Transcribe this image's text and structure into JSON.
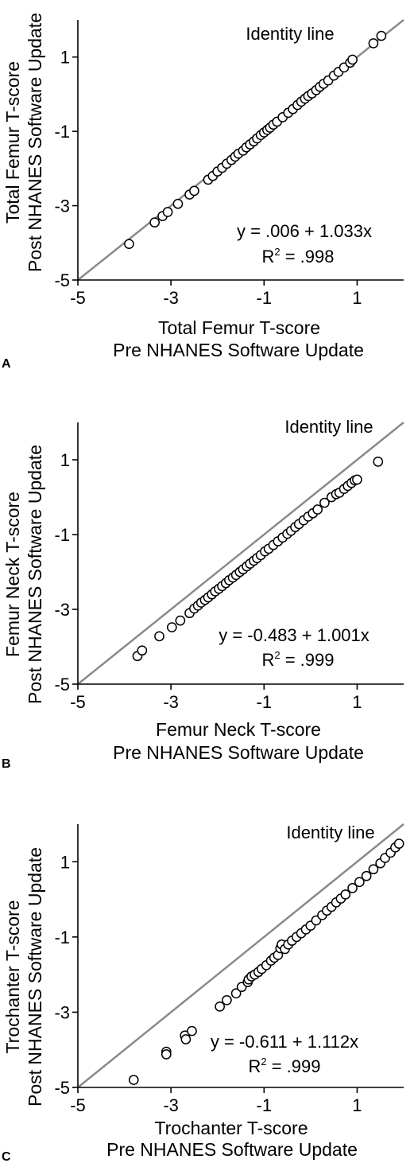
{
  "chart_data": [
    {
      "type": "scatter",
      "panel_label": "A",
      "xlabel_line1": "Total Femur T-score",
      "xlabel_line2": "Pre NHANES Software Update",
      "ylabel_line1": "Total Femur T-score",
      "ylabel_line2": "Post NHANES Software Update",
      "identity_label": "Identity line",
      "equation": "y = .006 + 1.033x",
      "r2_prefix": "R",
      "r2_sup": "2",
      "r2_value": " = .998",
      "xlim": [
        -5,
        2
      ],
      "ylim": [
        -5,
        2
      ],
      "xticks": [
        -5,
        -3,
        -1,
        1
      ],
      "yticks": [
        -5,
        -3,
        -1,
        1
      ],
      "identity_line": true,
      "points": [
        [
          -3.9,
          -4.03
        ],
        [
          -3.35,
          -3.45
        ],
        [
          -3.18,
          -3.28
        ],
        [
          -3.07,
          -3.17
        ],
        [
          -2.85,
          -2.95
        ],
        [
          -2.6,
          -2.7
        ],
        [
          -2.5,
          -2.6
        ],
        [
          -2.2,
          -2.3
        ],
        [
          -2.1,
          -2.2
        ],
        [
          -2.0,
          -2.08
        ],
        [
          -1.9,
          -1.98
        ],
        [
          -1.8,
          -1.87
        ],
        [
          -1.7,
          -1.77
        ],
        [
          -1.62,
          -1.68
        ],
        [
          -1.55,
          -1.6
        ],
        [
          -1.45,
          -1.52
        ],
        [
          -1.38,
          -1.43
        ],
        [
          -1.3,
          -1.35
        ],
        [
          -1.22,
          -1.27
        ],
        [
          -1.15,
          -1.19
        ],
        [
          -1.07,
          -1.1
        ],
        [
          -1.0,
          -1.03
        ],
        [
          -0.93,
          -0.96
        ],
        [
          -0.87,
          -0.9
        ],
        [
          -0.8,
          -0.82
        ],
        [
          -0.72,
          -0.74
        ],
        [
          -0.6,
          -0.62
        ],
        [
          -0.48,
          -0.5
        ],
        [
          -0.38,
          -0.4
        ],
        [
          -0.28,
          -0.29
        ],
        [
          -0.2,
          -0.2
        ],
        [
          -0.12,
          -0.12
        ],
        [
          -0.05,
          -0.05
        ],
        [
          0.03,
          0.02
        ],
        [
          0.12,
          0.11
        ],
        [
          0.2,
          0.2
        ],
        [
          0.28,
          0.28
        ],
        [
          0.38,
          0.37
        ],
        [
          0.5,
          0.5
        ],
        [
          0.6,
          0.6
        ],
        [
          0.72,
          0.72
        ],
        [
          0.85,
          0.85
        ],
        [
          0.9,
          0.93
        ],
        [
          1.35,
          1.37
        ],
        [
          1.52,
          1.57
        ]
      ]
    },
    {
      "type": "scatter",
      "panel_label": "B",
      "xlabel_line1": "Femur Neck T-score",
      "xlabel_line2": "Pre NHANES Software Update",
      "ylabel_line1": "Femur Neck T-score",
      "ylabel_line2": "Post NHANES Software Update",
      "identity_label": "Identity line",
      "equation": "y = -0.483 + 1.001x",
      "r2_prefix": "R",
      "r2_sup": "2",
      "r2_value": " = .999",
      "xlim": [
        -5,
        2
      ],
      "ylim": [
        -5,
        2
      ],
      "xticks": [
        -5,
        -3,
        -1,
        1
      ],
      "yticks": [
        -5,
        -3,
        -1,
        1
      ],
      "identity_line": true,
      "points": [
        [
          -3.72,
          -4.25
        ],
        [
          -3.62,
          -4.1
        ],
        [
          -3.25,
          -3.72
        ],
        [
          -2.98,
          -3.48
        ],
        [
          -2.8,
          -3.3
        ],
        [
          -2.6,
          -3.1
        ],
        [
          -2.5,
          -2.98
        ],
        [
          -2.42,
          -2.9
        ],
        [
          -2.35,
          -2.82
        ],
        [
          -2.27,
          -2.75
        ],
        [
          -2.2,
          -2.68
        ],
        [
          -2.12,
          -2.6
        ],
        [
          -2.05,
          -2.52
        ],
        [
          -1.97,
          -2.45
        ],
        [
          -1.9,
          -2.38
        ],
        [
          -1.82,
          -2.3
        ],
        [
          -1.75,
          -2.22
        ],
        [
          -1.67,
          -2.15
        ],
        [
          -1.6,
          -2.08
        ],
        [
          -1.52,
          -2.0
        ],
        [
          -1.45,
          -1.93
        ],
        [
          -1.37,
          -1.85
        ],
        [
          -1.3,
          -1.78
        ],
        [
          -1.22,
          -1.7
        ],
        [
          -1.15,
          -1.63
        ],
        [
          -1.07,
          -1.55
        ],
        [
          -0.98,
          -1.45
        ],
        [
          -0.9,
          -1.38
        ],
        [
          -0.8,
          -1.28
        ],
        [
          -0.7,
          -1.18
        ],
        [
          -0.6,
          -1.08
        ],
        [
          -0.5,
          -0.98
        ],
        [
          -0.42,
          -0.9
        ],
        [
          -0.33,
          -0.8
        ],
        [
          -0.25,
          -0.72
        ],
        [
          -0.15,
          -0.62
        ],
        [
          -0.05,
          -0.52
        ],
        [
          0.05,
          -0.43
        ],
        [
          0.15,
          -0.33
        ],
        [
          0.3,
          -0.15
        ],
        [
          0.45,
          0.0
        ],
        [
          0.55,
          0.08
        ],
        [
          0.62,
          0.12
        ],
        [
          0.72,
          0.22
        ],
        [
          0.8,
          0.3
        ],
        [
          0.88,
          0.38
        ],
        [
          0.95,
          0.45
        ],
        [
          1.0,
          0.47
        ],
        [
          1.45,
          0.95
        ]
      ]
    },
    {
      "type": "scatter",
      "panel_label": "C",
      "xlabel_line1": "Trochanter T-score",
      "xlabel_line2": "Pre NHANES Software Update",
      "ylabel_line1": "Trochanter T-score",
      "ylabel_line2": "Post NHANES Software Update",
      "identity_label": "Identity line",
      "equation": "y = -0.611 + 1.112x",
      "r2_prefix": "R",
      "r2_sup": "2",
      "r2_value": " = .999",
      "xlim": [
        -5,
        2
      ],
      "ylim": [
        -5,
        2
      ],
      "xticks": [
        -5,
        -3,
        -1,
        1
      ],
      "yticks": [
        -5,
        -3,
        -1,
        1
      ],
      "identity_line": true,
      "points": [
        [
          -3.8,
          -4.8
        ],
        [
          -3.1,
          -4.05
        ],
        [
          -3.1,
          -4.12
        ],
        [
          -2.7,
          -3.62
        ],
        [
          -2.68,
          -3.72
        ],
        [
          -2.55,
          -3.5
        ],
        [
          -1.95,
          -2.85
        ],
        [
          -1.8,
          -2.68
        ],
        [
          -1.6,
          -2.5
        ],
        [
          -1.48,
          -2.33
        ],
        [
          -1.35,
          -2.2
        ],
        [
          -1.33,
          -2.13
        ],
        [
          -1.27,
          -2.05
        ],
        [
          -1.2,
          -2.0
        ],
        [
          -1.12,
          -1.93
        ],
        [
          -1.05,
          -1.85
        ],
        [
          -0.95,
          -1.75
        ],
        [
          -0.85,
          -1.63
        ],
        [
          -0.78,
          -1.55
        ],
        [
          -0.7,
          -1.48
        ],
        [
          -0.65,
          -1.3
        ],
        [
          -0.62,
          -1.2
        ],
        [
          -0.55,
          -1.32
        ],
        [
          -0.48,
          -1.2
        ],
        [
          -0.4,
          -1.1
        ],
        [
          -0.3,
          -1.0
        ],
        [
          -0.2,
          -0.9
        ],
        [
          -0.1,
          -0.8
        ],
        [
          0.0,
          -0.7
        ],
        [
          0.12,
          -0.56
        ],
        [
          0.25,
          -0.42
        ],
        [
          0.35,
          -0.3
        ],
        [
          0.45,
          -0.2
        ],
        [
          0.55,
          -0.08
        ],
        [
          0.65,
          0.02
        ],
        [
          0.75,
          0.13
        ],
        [
          0.9,
          0.3
        ],
        [
          1.05,
          0.46
        ],
        [
          1.2,
          0.62
        ],
        [
          1.35,
          0.8
        ],
        [
          1.5,
          0.96
        ],
        [
          1.6,
          1.1
        ],
        [
          1.72,
          1.24
        ],
        [
          1.82,
          1.38
        ],
        [
          1.9,
          1.48
        ]
      ]
    }
  ]
}
